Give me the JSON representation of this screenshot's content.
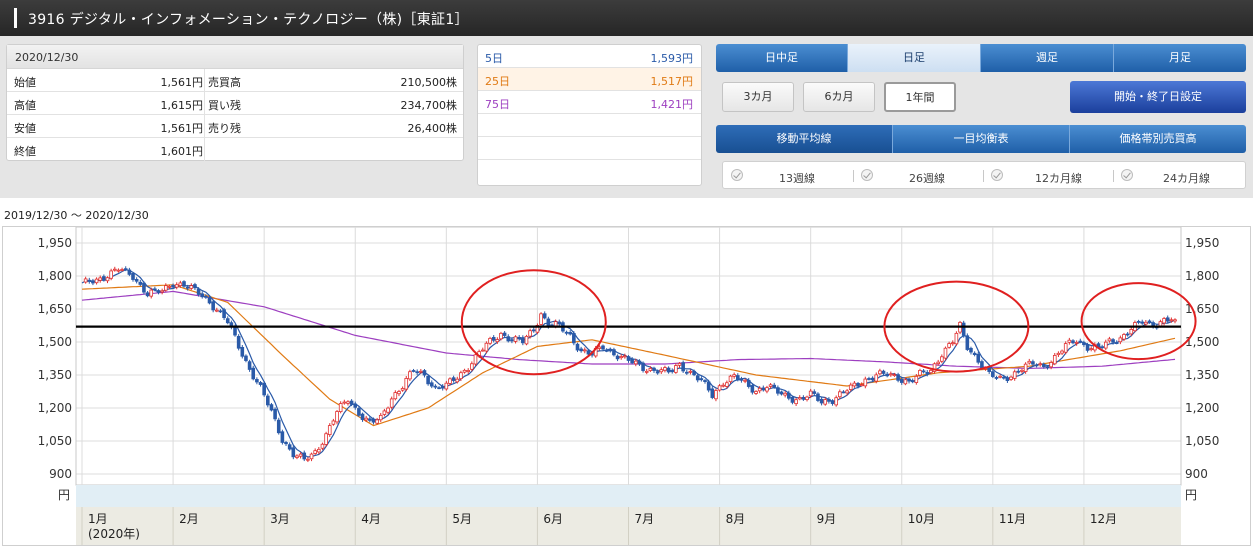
{
  "header": {
    "title": "3916 デジタル・インフォメーション・テクノロジー（株)［東証1］"
  },
  "quote": {
    "date": "2020/12/30",
    "rows": [
      {
        "label": "始値",
        "value": "1,561円",
        "label2": "売買高",
        "value2": "210,500株"
      },
      {
        "label": "高値",
        "value": "1,615円",
        "label2": "買い残",
        "value2": "234,700株"
      },
      {
        "label": "安値",
        "value": "1,561円",
        "label2": "売り残",
        "value2": "26,400株"
      },
      {
        "label": "終値",
        "value": "1,601円",
        "label2": "",
        "value2": ""
      }
    ]
  },
  "moving_averages": [
    {
      "label": "5日",
      "value": "1,593円",
      "color": "#2a5aa8"
    },
    {
      "label": "25日",
      "value": "1,517円",
      "color": "#e07a14"
    },
    {
      "label": "75日",
      "value": "1,421円",
      "color": "#9d3fc0"
    }
  ],
  "period_tabs": [
    {
      "label": "日中足",
      "selected": false
    },
    {
      "label": "日足",
      "selected": true
    },
    {
      "label": "週足",
      "selected": false
    },
    {
      "label": "月足",
      "selected": false
    }
  ],
  "range_buttons": [
    {
      "label": "3カ月",
      "selected": false
    },
    {
      "label": "6カ月",
      "selected": false
    },
    {
      "label": "1年間",
      "selected": true
    }
  ],
  "set_button": {
    "label": "開始・終了日設定"
  },
  "indicator_tabs": [
    {
      "label": "移動平均線",
      "selected": true
    },
    {
      "label": "一目均衡表",
      "selected": false
    },
    {
      "label": "価格帯別売買高",
      "selected": false
    }
  ],
  "line_options": [
    "13週線",
    "26週線",
    "12カ月線",
    "24カ月線"
  ],
  "range_text": "2019/12/30 〜 2020/12/30",
  "chart_data": {
    "type": "candlestick",
    "y_ticks": [
      "1,950",
      "1,800",
      "1,650",
      "1,500",
      "1,350",
      "1,200",
      "1,050",
      "900"
    ],
    "y_unit": "円",
    "ylim": [
      850,
      2000
    ],
    "month_labels": [
      "1月",
      "2月",
      "3月",
      "4月",
      "5月",
      "6月",
      "7月",
      "8月",
      "9月",
      "10月",
      "11月",
      "12月"
    ],
    "year_label": "(2020年)",
    "horizontal_line": 1570,
    "grid": true,
    "colors": {
      "up": "#e03030",
      "down": "#2a5aa8",
      "ma5": "#2a5aa8",
      "ma25": "#e07a14",
      "ma75": "#9d3fc0",
      "line": "#000000",
      "circle": "#e02020"
    },
    "close_keypoints": [
      [
        0,
        1760
      ],
      [
        5,
        1790
      ],
      [
        10,
        1830
      ],
      [
        14,
        1800
      ],
      [
        18,
        1720
      ],
      [
        22,
        1730
      ],
      [
        25,
        1770
      ],
      [
        28,
        1760
      ],
      [
        31,
        1730
      ],
      [
        34,
        1700
      ],
      [
        37,
        1650
      ],
      [
        40,
        1590
      ],
      [
        43,
        1480
      ],
      [
        46,
        1380
      ],
      [
        49,
        1290
      ],
      [
        52,
        1180
      ],
      [
        55,
        1060
      ],
      [
        58,
        990
      ],
      [
        61,
        960
      ],
      [
        64,
        1000
      ],
      [
        67,
        1080
      ],
      [
        70,
        1180
      ],
      [
        73,
        1240
      ],
      [
        76,
        1180
      ],
      [
        79,
        1130
      ],
      [
        82,
        1150
      ],
      [
        85,
        1250
      ],
      [
        88,
        1300
      ],
      [
        91,
        1370
      ],
      [
        94,
        1350
      ],
      [
        97,
        1290
      ],
      [
        100,
        1300
      ],
      [
        103,
        1340
      ],
      [
        106,
        1390
      ],
      [
        109,
        1450
      ],
      [
        112,
        1500
      ],
      [
        115,
        1540
      ],
      [
        118,
        1510
      ],
      [
        121,
        1500
      ],
      [
        124,
        1560
      ],
      [
        126,
        1630
      ],
      [
        128,
        1580
      ],
      [
        131,
        1570
      ],
      [
        134,
        1530
      ],
      [
        137,
        1460
      ],
      [
        140,
        1440
      ],
      [
        143,
        1480
      ],
      [
        146,
        1450
      ],
      [
        149,
        1420
      ],
      [
        152,
        1400
      ],
      [
        155,
        1380
      ],
      [
        158,
        1370
      ],
      [
        161,
        1360
      ],
      [
        164,
        1400
      ],
      [
        167,
        1360
      ],
      [
        170,
        1320
      ],
      [
        173,
        1260
      ],
      [
        176,
        1320
      ],
      [
        179,
        1340
      ],
      [
        182,
        1310
      ],
      [
        185,
        1280
      ],
      [
        188,
        1300
      ],
      [
        191,
        1270
      ],
      [
        194,
        1250
      ],
      [
        197,
        1240
      ],
      [
        200,
        1260
      ],
      [
        203,
        1230
      ],
      [
        206,
        1240
      ],
      [
        209,
        1270
      ],
      [
        212,
        1300
      ],
      [
        215,
        1330
      ],
      [
        218,
        1350
      ],
      [
        221,
        1350
      ],
      [
        224,
        1340
      ],
      [
        227,
        1320
      ],
      [
        230,
        1350
      ],
      [
        233,
        1370
      ],
      [
        236,
        1450
      ],
      [
        239,
        1500
      ],
      [
        241,
        1570
      ],
      [
        243,
        1480
      ],
      [
        246,
        1420
      ],
      [
        249,
        1350
      ],
      [
        252,
        1330
      ],
      [
        255,
        1350
      ],
      [
        258,
        1380
      ],
      [
        261,
        1400
      ],
      [
        264,
        1390
      ],
      [
        267,
        1430
      ],
      [
        270,
        1480
      ],
      [
        273,
        1510
      ],
      [
        276,
        1480
      ],
      [
        279,
        1470
      ],
      [
        282,
        1500
      ],
      [
        285,
        1520
      ],
      [
        288,
        1560
      ],
      [
        291,
        1590
      ],
      [
        294,
        1580
      ],
      [
        297,
        1600
      ],
      [
        300,
        1601
      ]
    ],
    "ma25_keypoints": [
      [
        0,
        1740
      ],
      [
        25,
        1760
      ],
      [
        40,
        1680
      ],
      [
        55,
        1440
      ],
      [
        68,
        1240
      ],
      [
        80,
        1120
      ],
      [
        95,
        1200
      ],
      [
        110,
        1360
      ],
      [
        125,
        1480
      ],
      [
        140,
        1510
      ],
      [
        160,
        1440
      ],
      [
        185,
        1350
      ],
      [
        210,
        1300
      ],
      [
        235,
        1360
      ],
      [
        260,
        1390
      ],
      [
        285,
        1460
      ],
      [
        300,
        1517
      ]
    ],
    "ma75_keypoints": [
      [
        0,
        1690
      ],
      [
        25,
        1730
      ],
      [
        50,
        1660
      ],
      [
        75,
        1530
      ],
      [
        100,
        1450
      ],
      [
        120,
        1420
      ],
      [
        140,
        1400
      ],
      [
        160,
        1400
      ],
      [
        180,
        1420
      ],
      [
        200,
        1425
      ],
      [
        220,
        1410
      ],
      [
        240,
        1390
      ],
      [
        260,
        1380
      ],
      [
        280,
        1390
      ],
      [
        300,
        1421
      ]
    ]
  }
}
